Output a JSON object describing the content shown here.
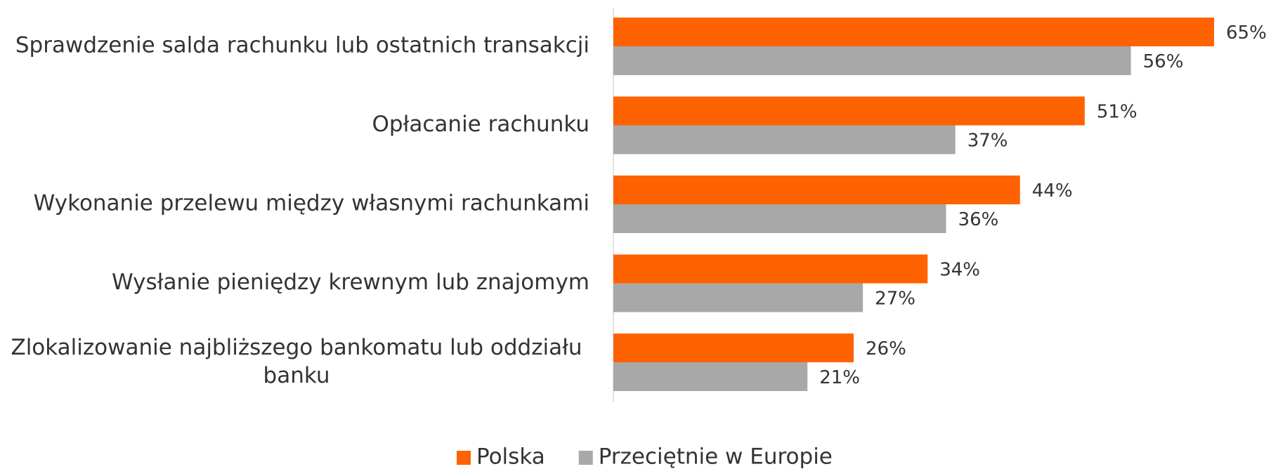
{
  "chart_data": {
    "type": "hbar",
    "categories": [
      "Sprawdzenie salda rachunku lub ostatnich transakcji",
      "Opłacanie rachunku",
      "Wykonanie przelewu między własnymi rachunkami",
      "Wysłanie pieniędzy krewnym lub znajomym",
      "Zlokalizowanie najbliższego bankomatu lub oddziału banku"
    ],
    "series": [
      {
        "name": "Polska",
        "color": "#ff6200",
        "values": [
          65,
          51,
          44,
          34,
          26
        ],
        "value_labels": [
          "65%",
          "51%",
          "44%",
          "34%",
          "26%"
        ]
      },
      {
        "name": "Przeciętnie w Europie",
        "color": "#a8a8a8",
        "values": [
          56,
          37,
          36,
          27,
          21
        ],
        "value_labels": [
          "56%",
          "37%",
          "36%",
          "27%",
          "21%"
        ]
      }
    ],
    "xlim": [
      0,
      65
    ],
    "legend": "bottom"
  }
}
